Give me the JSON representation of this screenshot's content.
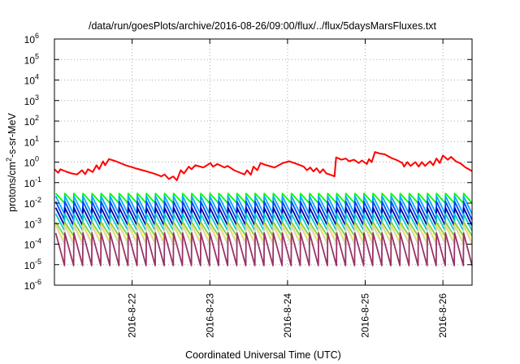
{
  "chart_data": {
    "type": "line",
    "title": "/data/run/goesPlots/archive/2016-08-26/09:00/flux/../flux/5daysMarsFluxes.txt",
    "xlabel": "Coordinated Universal Time (UTC)",
    "ylabel": "protons/cm²-s-sr-MeV",
    "ylabel_main": "protons/cm",
    "ylabel_sup": "2",
    "ylabel_rest": "-s-sr-MeV",
    "y_scale": "log",
    "ylim": [
      1e-06,
      1000000.0
    ],
    "xlim": [
      "2016-08-21 00:00",
      "2016-08-26 09:00"
    ],
    "grid": true,
    "y_ticks": [
      {
        "exp": -6,
        "base": "10",
        "sup": "-6"
      },
      {
        "exp": -5,
        "base": "10",
        "sup": "-5"
      },
      {
        "exp": -4,
        "base": "10",
        "sup": "-4"
      },
      {
        "exp": -3,
        "base": "10",
        "sup": "-3"
      },
      {
        "exp": -2,
        "base": "10",
        "sup": "-2"
      },
      {
        "exp": -1,
        "base": "10",
        "sup": "-1"
      },
      {
        "exp": 0,
        "base": "10",
        "sup": "0"
      },
      {
        "exp": 1,
        "base": "10",
        "sup": "1"
      },
      {
        "exp": 2,
        "base": "10",
        "sup": "2"
      },
      {
        "exp": 3,
        "base": "10",
        "sup": "3"
      },
      {
        "exp": 4,
        "base": "10",
        "sup": "4"
      },
      {
        "exp": 5,
        "base": "10",
        "sup": "5"
      },
      {
        "exp": 6,
        "base": "10",
        "sup": "6"
      }
    ],
    "x_ticks": [
      {
        "value": "2016-08-22",
        "label": "2016-8-22"
      },
      {
        "value": "2016-08-23",
        "label": "2016-8-23"
      },
      {
        "value": "2016-08-24",
        "label": "2016-8-24"
      },
      {
        "value": "2016-08-25",
        "label": "2016-8-25"
      },
      {
        "value": "2016-08-26",
        "label": "2016-8-26"
      }
    ],
    "series": [
      {
        "color": "#ff0000",
        "points": [
          [
            "2016-08-21 00:00",
            0.45
          ],
          [
            "2016-08-21 01:10",
            0.3
          ],
          [
            "2016-08-21 01:50",
            0.45
          ],
          [
            "2016-08-21 03:30",
            0.35
          ],
          [
            "2016-08-21 05:20",
            0.28
          ],
          [
            "2016-08-21 07:00",
            0.25
          ],
          [
            "2016-08-21 08:30",
            0.4
          ],
          [
            "2016-08-21 09:30",
            0.26
          ],
          [
            "2016-08-21 10:20",
            0.45
          ],
          [
            "2016-08-21 11:50",
            0.33
          ],
          [
            "2016-08-21 13:00",
            0.7
          ],
          [
            "2016-08-21 13:50",
            0.45
          ],
          [
            "2016-08-21 15:00",
            1.1
          ],
          [
            "2016-08-21 15:40",
            0.7
          ],
          [
            "2016-08-21 16:50",
            1.4
          ],
          [
            "2016-08-21 19:00",
            1.1
          ],
          [
            "2016-08-21 22:00",
            0.7
          ],
          [
            "2016-08-22 01:00",
            0.5
          ],
          [
            "2016-08-22 04:00",
            0.37
          ],
          [
            "2016-08-22 07:00",
            0.27
          ],
          [
            "2016-08-22 09:00",
            0.2
          ],
          [
            "2016-08-22 10:00",
            0.25
          ],
          [
            "2016-08-22 11:20",
            0.15
          ],
          [
            "2016-08-22 12:40",
            0.2
          ],
          [
            "2016-08-22 13:50",
            0.13
          ],
          [
            "2016-08-22 15:00",
            0.4
          ],
          [
            "2016-08-22 16:00",
            0.28
          ],
          [
            "2016-08-22 17:30",
            0.6
          ],
          [
            "2016-08-22 18:20",
            0.45
          ],
          [
            "2016-08-22 19:30",
            0.7
          ],
          [
            "2016-08-22 22:00",
            0.55
          ],
          [
            "2016-08-23 00:10",
            0.9
          ],
          [
            "2016-08-23 01:00",
            0.6
          ],
          [
            "2016-08-23 02:20",
            0.8
          ],
          [
            "2016-08-23 04:30",
            0.55
          ],
          [
            "2016-08-23 05:30",
            0.65
          ],
          [
            "2016-08-23 07:30",
            0.4
          ],
          [
            "2016-08-23 09:00",
            0.32
          ],
          [
            "2016-08-23 10:40",
            0.25
          ],
          [
            "2016-08-23 11:30",
            0.4
          ],
          [
            "2016-08-23 12:40",
            0.24
          ],
          [
            "2016-08-23 13:30",
            0.6
          ],
          [
            "2016-08-23 14:40",
            0.4
          ],
          [
            "2016-08-23 15:40",
            0.9
          ],
          [
            "2016-08-23 17:30",
            0.7
          ],
          [
            "2016-08-23 20:00",
            0.55
          ],
          [
            "2016-08-23 22:30",
            0.9
          ],
          [
            "2016-08-24 00:30",
            1.1
          ],
          [
            "2016-08-24 03:00",
            0.8
          ],
          [
            "2016-08-24 05:00",
            0.6
          ],
          [
            "2016-08-24 06:00",
            0.4
          ],
          [
            "2016-08-24 07:00",
            0.55
          ],
          [
            "2016-08-24 08:00",
            0.35
          ],
          [
            "2016-08-24 09:00",
            0.5
          ],
          [
            "2016-08-24 10:00",
            0.3
          ],
          [
            "2016-08-24 11:00",
            0.45
          ],
          [
            "2016-08-24 12:00",
            0.28
          ],
          [
            "2016-08-24 13:00",
            0.25
          ],
          [
            "2016-08-24 14:30",
            0.2
          ],
          [
            "2016-08-24 15:00",
            1.7
          ],
          [
            "2016-08-24 16:40",
            1.3
          ],
          [
            "2016-08-24 18:00",
            1.5
          ],
          [
            "2016-08-24 19:00",
            1.1
          ],
          [
            "2016-08-24 20:30",
            1.3
          ],
          [
            "2016-08-24 22:00",
            0.9
          ],
          [
            "2016-08-24 23:00",
            1.2
          ],
          [
            "2016-08-25 00:30",
            0.8
          ],
          [
            "2016-08-25 01:10",
            1.4
          ],
          [
            "2016-08-25 02:00",
            1.0
          ],
          [
            "2016-08-25 03:00",
            3.1
          ],
          [
            "2016-08-25 04:30",
            2.6
          ],
          [
            "2016-08-25 06:00",
            2.4
          ],
          [
            "2016-08-25 08:00",
            1.6
          ],
          [
            "2016-08-25 10:00",
            1.2
          ],
          [
            "2016-08-25 11:30",
            0.9
          ],
          [
            "2016-08-25 12:00",
            0.6
          ],
          [
            "2016-08-25 13:00",
            1.0
          ],
          [
            "2016-08-25 14:00",
            0.65
          ],
          [
            "2016-08-25 15:30",
            1.0
          ],
          [
            "2016-08-25 16:30",
            0.6
          ],
          [
            "2016-08-25 17:30",
            1.0
          ],
          [
            "2016-08-25 18:30",
            0.65
          ],
          [
            "2016-08-25 20:00",
            1.1
          ],
          [
            "2016-08-25 21:00",
            0.7
          ],
          [
            "2016-08-25 22:00",
            1.5
          ],
          [
            "2016-08-25 23:00",
            0.9
          ],
          [
            "2016-08-26 00:00",
            2.1
          ],
          [
            "2016-08-26 01:30",
            1.3
          ],
          [
            "2016-08-26 02:30",
            1.8
          ],
          [
            "2016-08-26 04:00",
            1.1
          ],
          [
            "2016-08-26 05:30",
            0.85
          ],
          [
            "2016-08-26 07:00",
            0.55
          ],
          [
            "2016-08-26 08:00",
            0.45
          ],
          [
            "2016-08-26 09:00",
            0.36
          ]
        ]
      },
      {
        "color": "#00ff00",
        "peak": 0.03,
        "trough": 0.01
      },
      {
        "color": "#00aaff",
        "peak": 0.022,
        "trough": 0.003
      },
      {
        "color": "#0044ff",
        "peak": 0.012,
        "trough": 0.0015
      },
      {
        "color": "#0000aa",
        "peak": 0.006,
        "trough": 0.0008
      },
      {
        "color": "#00cccc",
        "peak": 0.003,
        "trough": 0.00045
      },
      {
        "color": "#7fcc50",
        "peak": 0.0012,
        "trough": 0.00025
      },
      {
        "color": "#ffee00",
        "peak": 0.0009,
        "trough": 0.00012
      },
      {
        "color": "#d8d8c0",
        "peak": 0.0008,
        "trough": 0.0001
      },
      {
        "color": "#993366",
        "peak": 0.00035,
        "trough": 9e-06
      }
    ]
  }
}
